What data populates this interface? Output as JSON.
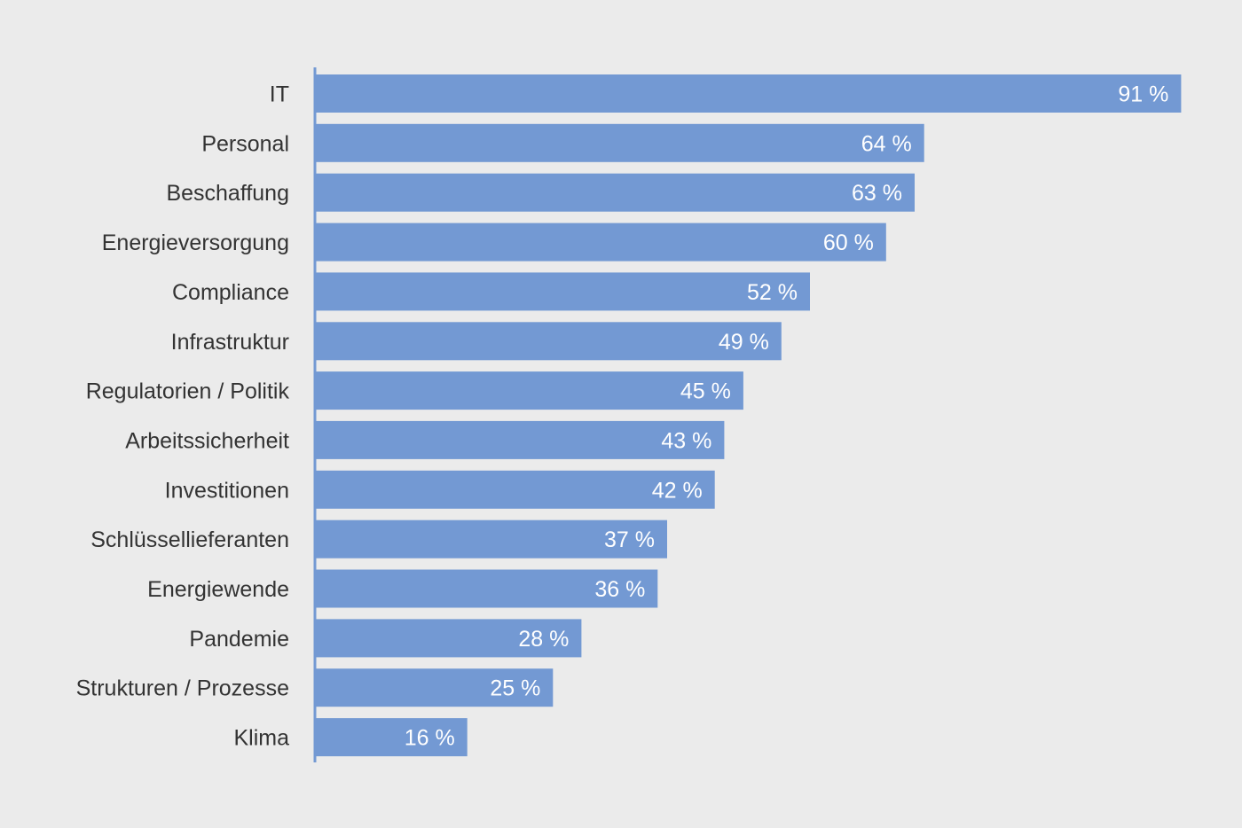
{
  "colors": {
    "background": "#ebebeb",
    "bar": "#7399d3",
    "bar_label": "#ffffff",
    "category_label": "#333333",
    "axis": "#7399d3"
  },
  "chart_data": {
    "type": "bar",
    "orientation": "horizontal",
    "title": "",
    "xlabel": "",
    "ylabel": "",
    "xlim": [
      0,
      100
    ],
    "grid": false,
    "legend": "none",
    "categories": [
      "IT",
      "Personal",
      "Beschaffung",
      "Energieversorgung",
      "Compliance",
      "Infrastruktur",
      "Regulatorien / Politik",
      "Arbeitssicherheit",
      "Investitionen",
      "Schlüssellieferanten",
      "Energiewende",
      "Pandemie",
      "Strukturen / Prozesse",
      "Klima"
    ],
    "values": [
      91,
      64,
      63,
      60,
      52,
      49,
      45,
      43,
      42,
      37,
      36,
      28,
      25,
      16
    ],
    "data_labels": [
      "91 %",
      "64 %",
      "63 %",
      "60 %",
      "52 %",
      "49 %",
      "45 %",
      "43 %",
      "42 %",
      "37 %",
      "36 %",
      "28 %",
      "25 %",
      "16 %"
    ]
  }
}
